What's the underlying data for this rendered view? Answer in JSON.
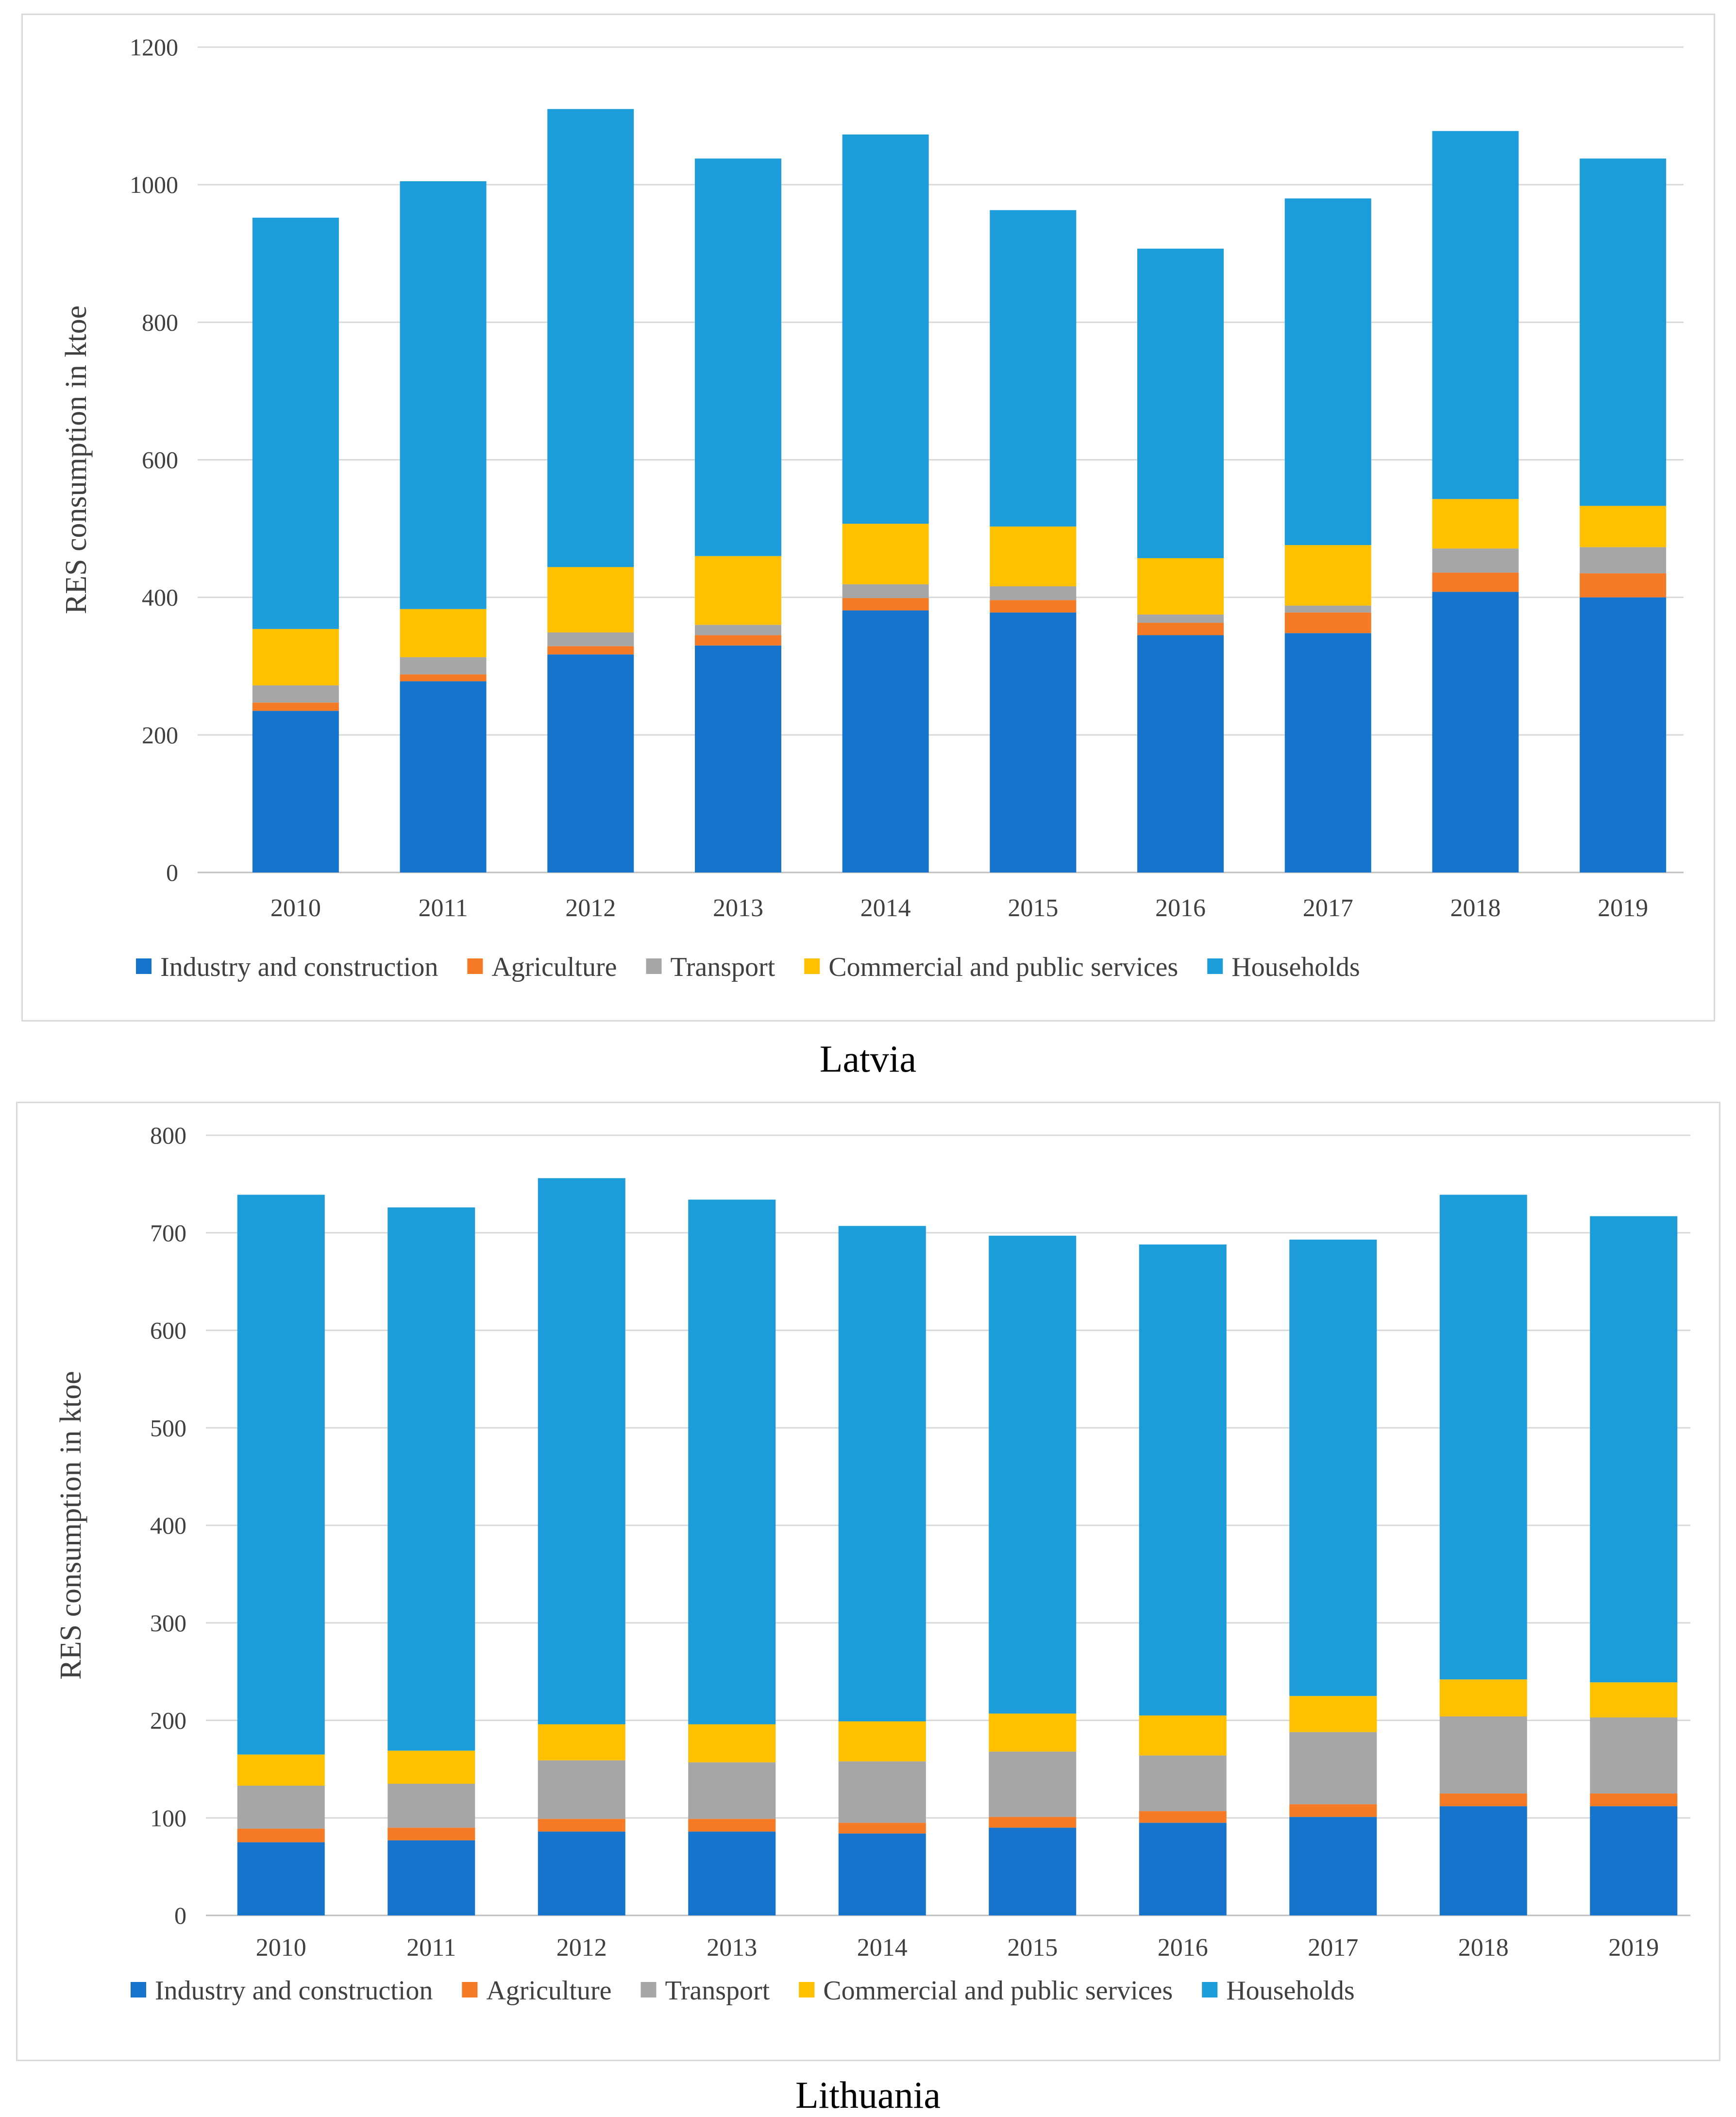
{
  "chart_data": [
    {
      "type": "bar",
      "stacked": true,
      "title": "Latvia",
      "xlabel": "",
      "ylabel": "RES consumption in ktoe",
      "ylim": [
        0,
        1200
      ],
      "yticks": [
        0,
        200,
        400,
        600,
        800,
        1000,
        1200
      ],
      "grid": true,
      "legend_position": "bottom",
      "categories": [
        "2010",
        "2011",
        "2012",
        "2013",
        "2014",
        "2015",
        "2016",
        "2017",
        "2018",
        "2019"
      ],
      "series": [
        {
          "name": "Industry and construction",
          "color": "#1674CC",
          "values": [
            235,
            278,
            317,
            330,
            381,
            378,
            345,
            348,
            408,
            400
          ]
        },
        {
          "name": "Agriculture",
          "color": "#F57A25",
          "values": [
            12,
            10,
            12,
            15,
            18,
            18,
            18,
            30,
            28,
            35
          ]
        },
        {
          "name": "Transport",
          "color": "#A6A6A6",
          "values": [
            25,
            25,
            20,
            15,
            20,
            20,
            12,
            10,
            35,
            38
          ]
        },
        {
          "name": "Commercial and public services",
          "color": "#FFC000",
          "values": [
            82,
            70,
            95,
            100,
            88,
            87,
            82,
            88,
            72,
            60
          ]
        },
        {
          "name": "Households",
          "color": "#1C9CD8",
          "values": [
            598,
            622,
            666,
            578,
            566,
            460,
            450,
            504,
            535,
            505
          ]
        }
      ]
    },
    {
      "type": "bar",
      "stacked": true,
      "title": "Lithuania",
      "xlabel": "",
      "ylabel": "RES consumption in ktoe",
      "ylim": [
        0,
        800
      ],
      "yticks": [
        0,
        100,
        200,
        300,
        400,
        500,
        600,
        700,
        800
      ],
      "grid": true,
      "legend_position": "bottom",
      "categories": [
        "2010",
        "2011",
        "2012",
        "2013",
        "2014",
        "2015",
        "2016",
        "2017",
        "2018",
        "2019"
      ],
      "series": [
        {
          "name": "Industry and construction",
          "color": "#1674CC",
          "values": [
            75,
            77,
            86,
            86,
            84,
            90,
            95,
            101,
            112,
            112
          ]
        },
        {
          "name": "Agriculture",
          "color": "#F57A25",
          "values": [
            14,
            13,
            13,
            13,
            11,
            11,
            12,
            13,
            13,
            13
          ]
        },
        {
          "name": "Transport",
          "color": "#A6A6A6",
          "values": [
            44,
            45,
            60,
            58,
            63,
            67,
            57,
            74,
            79,
            78
          ]
        },
        {
          "name": "Commercial and public services",
          "color": "#FFC000",
          "values": [
            32,
            34,
            37,
            39,
            41,
            39,
            41,
            37,
            38,
            36
          ]
        },
        {
          "name": "Households",
          "color": "#1C9CD8",
          "values": [
            574,
            557,
            560,
            538,
            508,
            490,
            483,
            468,
            497,
            478
          ]
        }
      ]
    }
  ]
}
